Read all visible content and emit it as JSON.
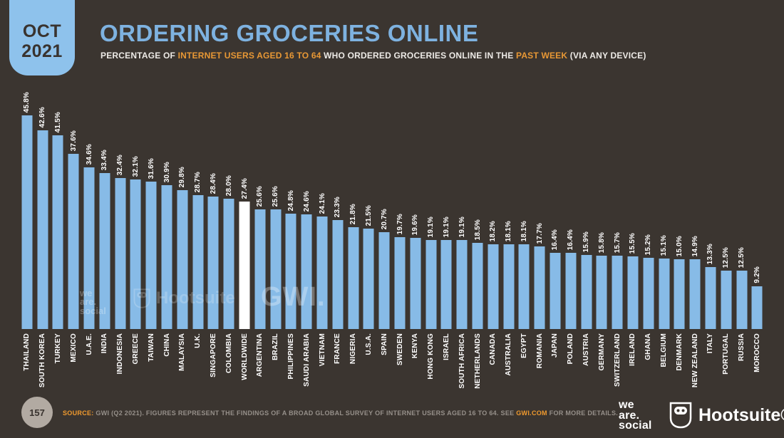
{
  "badge": {
    "line1": "OCT",
    "line2": "2021"
  },
  "header": {
    "title": "ORDERING GROCERIES ONLINE",
    "subtitle_parts": [
      {
        "text": "PERCENTAGE OF ",
        "color": "white"
      },
      {
        "text": "INTERNET USERS AGED 16 TO 64",
        "color": "orange"
      },
      {
        "text": " WHO ORDERED GROCERIES ONLINE IN THE ",
        "color": "white"
      },
      {
        "text": "PAST WEEK",
        "color": "orange"
      },
      {
        "text": " (VIA ANY DEVICE)",
        "color": "white"
      }
    ]
  },
  "chart_data": {
    "type": "bar",
    "title": "ORDERING GROCERIES ONLINE",
    "subtitle": "PERCENTAGE OF INTERNET USERS AGED 16 TO 64 WHO ORDERED GROCERIES ONLINE IN THE PAST WEEK (VIA ANY DEVICE)",
    "unit": "%",
    "ylim": [
      0,
      48
    ],
    "grid": false,
    "legend": "none",
    "value_label_format": "one-decimal-percent",
    "highlight_category": "WORLDWIDE",
    "categories": [
      "THAILAND",
      "SOUTH KOREA",
      "TURKEY",
      "MEXICO",
      "U.A.E.",
      "INDIA",
      "INDONESIA",
      "GREECE",
      "TAIWAN",
      "CHINA",
      "MALAYSIA",
      "U.K.",
      "SINGAPORE",
      "COLOMBIA",
      "WORLDWIDE",
      "ARGENTINA",
      "BRAZIL",
      "PHILIPPINES",
      "SAUDI ARABIA",
      "VIETNAM",
      "FRANCE",
      "NIGERIA",
      "U.S.A.",
      "SPAIN",
      "SWEDEN",
      "KENYA",
      "HONG KONG",
      "ISRAEL",
      "SOUTH AFRICA",
      "NETHERLANDS",
      "CANADA",
      "AUSTRALIA",
      "EGYPT",
      "ROMANIA",
      "JAPAN",
      "POLAND",
      "AUSTRIA",
      "GERMANY",
      "SWITZERLAND",
      "IRELAND",
      "GHANA",
      "BELGIUM",
      "DENMARK",
      "NEW ZEALAND",
      "ITALY",
      "PORTUGAL",
      "RUSSIA",
      "MOROCCO"
    ],
    "values": [
      45.8,
      42.6,
      41.5,
      37.6,
      34.6,
      33.4,
      32.4,
      32.1,
      31.6,
      30.9,
      29.8,
      28.7,
      28.4,
      28.0,
      27.4,
      25.6,
      25.6,
      24.8,
      24.6,
      24.1,
      23.3,
      21.8,
      21.5,
      20.7,
      19.7,
      19.6,
      19.1,
      19.1,
      19.1,
      18.5,
      18.2,
      18.1,
      18.1,
      17.7,
      16.4,
      16.4,
      15.9,
      15.8,
      15.7,
      15.5,
      15.2,
      15.1,
      15.0,
      14.9,
      13.3,
      12.5,
      12.5,
      9.2
    ]
  },
  "watermarks": {
    "wearesocial_lines": [
      "we",
      "are.",
      "social"
    ],
    "hootsuite": "Hootsuite",
    "gwi": "GWI."
  },
  "footer": {
    "page_number": "157",
    "source_prefix": "SOURCE:",
    "source_text": " GWI (Q2 2021). FIGURES REPRESENT THE FINDINGS OF A BROAD GLOBAL SURVEY OF INTERNET USERS AGED 16 TO 64. SEE ",
    "source_link": "GWI.COM",
    "source_suffix": " FOR MORE DETAILS.",
    "wearesocial_lines": [
      "we",
      "are.",
      "social"
    ],
    "hootsuite_label": "Hootsuite®"
  },
  "colors": {
    "background": "#3B3530",
    "bar_blue": "#87BBE7",
    "highlight_bar_white": "#FFFFFF",
    "title_blue": "#7EB2E0",
    "badge_blue": "#8EC2EC",
    "accent_orange": "#E89835",
    "source_orange": "#F09A2E",
    "dark_text": "#39332F",
    "muted_gray": "#96908A",
    "circle_gray": "#B2AAA2"
  }
}
